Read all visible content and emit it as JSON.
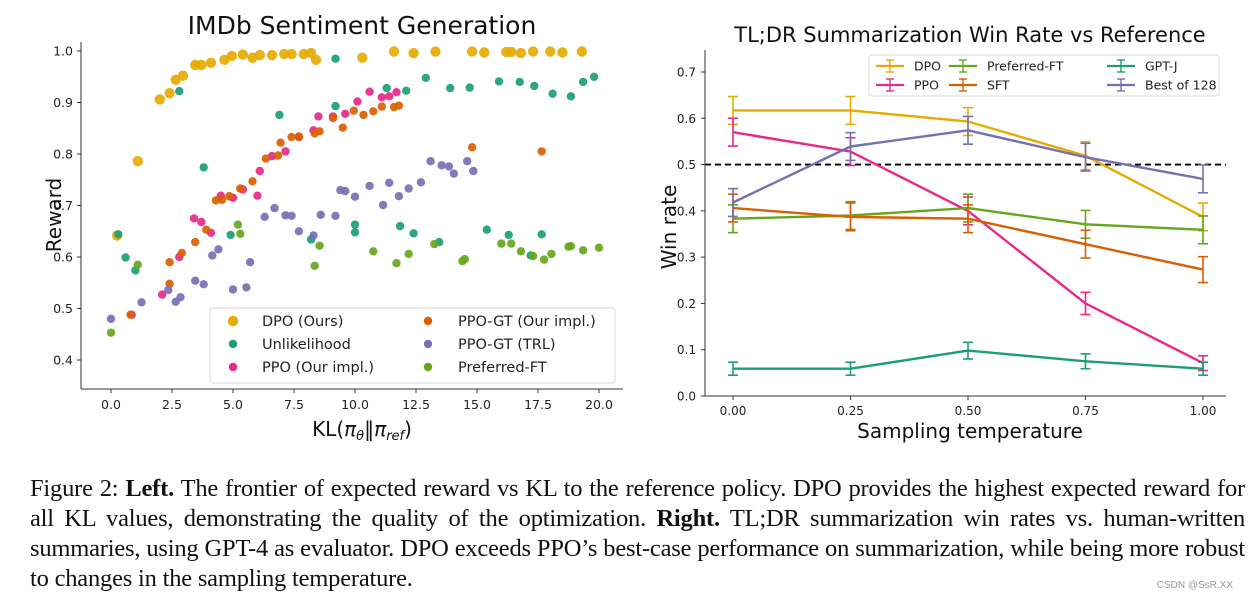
{
  "chart_data": [
    {
      "type": "scatter",
      "title": "IMDb Sentiment Generation",
      "xlabel": "KL(π_θ‖π_ref)",
      "ylabel": "Reward",
      "xlim": [
        -0.5,
        20.5
      ],
      "ylim": [
        0.345,
        1.02
      ],
      "xticks": [
        0.0,
        2.5,
        5.0,
        7.5,
        10.0,
        12.5,
        15.0,
        17.5,
        20.0
      ],
      "xtick_labels": [
        "0.0",
        "2.5",
        "5.0",
        "7.5",
        "10.0",
        "12.5",
        "15.0",
        "17.5",
        "20.0"
      ],
      "yticks": [
        0.4,
        0.5,
        0.6,
        0.7,
        0.8,
        0.9,
        1.0
      ],
      "ytick_labels": [
        "0.4",
        "0.5",
        "0.6",
        "0.7",
        "0.8",
        "0.9",
        "1.0"
      ],
      "grid": false,
      "legend_position": "bottom-right",
      "legend_columns": 2,
      "series": [
        {
          "name": "DPO (Ours)",
          "color": "#e6ab02",
          "size": "large",
          "points": [
            [
              0.25,
              0.642
            ],
            [
              1.1,
              0.786
            ],
            [
              2.0,
              0.906
            ],
            [
              2.4,
              0.918
            ],
            [
              2.65,
              0.944
            ],
            [
              2.95,
              0.952
            ],
            [
              3.45,
              0.973
            ],
            [
              3.7,
              0.973
            ],
            [
              4.1,
              0.977
            ],
            [
              4.65,
              0.983
            ],
            [
              4.95,
              0.99
            ],
            [
              5.4,
              0.993
            ],
            [
              5.8,
              0.987
            ],
            [
              6.1,
              0.992
            ],
            [
              6.6,
              0.992
            ],
            [
              7.1,
              0.994
            ],
            [
              7.4,
              0.994
            ],
            [
              7.9,
              0.994
            ],
            [
              8.2,
              0.996
            ],
            [
              8.4,
              0.983
            ],
            [
              10.3,
              0.987
            ],
            [
              11.6,
              0.999
            ],
            [
              12.4,
              0.996
            ],
            [
              13.3,
              0.999
            ],
            [
              14.8,
              0.999
            ],
            [
              15.3,
              0.997
            ],
            [
              16.2,
              0.998
            ],
            [
              16.4,
              0.998
            ],
            [
              16.8,
              0.996
            ],
            [
              17.3,
              0.999
            ],
            [
              18.0,
              0.999
            ],
            [
              18.5,
              0.997
            ],
            [
              19.3,
              0.999
            ]
          ]
        },
        {
          "name": "Unlikelihood",
          "color": "#1b9e77",
          "size": "small",
          "points": [
            [
              0.3,
              0.644
            ],
            [
              0.6,
              0.599
            ],
            [
              1.0,
              0.574
            ],
            [
              2.8,
              0.922
            ],
            [
              3.8,
              0.774
            ],
            [
              4.9,
              0.643
            ],
            [
              6.9,
              0.876
            ],
            [
              8.2,
              0.634
            ],
            [
              9.2,
              0.985
            ],
            [
              9.2,
              0.893
            ],
            [
              10.0,
              0.648
            ],
            [
              10.0,
              0.663
            ],
            [
              11.3,
              0.928
            ],
            [
              11.85,
              0.66
            ],
            [
              12.1,
              0.923
            ],
            [
              12.4,
              0.646
            ],
            [
              12.9,
              0.948
            ],
            [
              13.45,
              0.629
            ],
            [
              13.9,
              0.928
            ],
            [
              14.7,
              0.929
            ],
            [
              15.4,
              0.653
            ],
            [
              15.9,
              0.941
            ],
            [
              16.3,
              0.643
            ],
            [
              16.75,
              0.94
            ],
            [
              17.2,
              0.603
            ],
            [
              17.35,
              0.932
            ],
            [
              17.65,
              0.644
            ],
            [
              18.1,
              0.917
            ],
            [
              18.85,
              0.912
            ],
            [
              19.35,
              0.94
            ],
            [
              19.8,
              0.95
            ]
          ]
        },
        {
          "name": "PPO (Our impl.)",
          "color": "#e7298a",
          "size": "small",
          "points": [
            [
              0.85,
              0.488
            ],
            [
              2.1,
              0.527
            ],
            [
              2.8,
              0.6
            ],
            [
              3.4,
              0.675
            ],
            [
              3.7,
              0.668
            ],
            [
              4.1,
              0.647
            ],
            [
              4.5,
              0.719
            ],
            [
              5.0,
              0.715
            ],
            [
              5.4,
              0.731
            ],
            [
              6.0,
              0.719
            ],
            [
              6.1,
              0.767
            ],
            [
              6.6,
              0.796
            ],
            [
              7.15,
              0.805
            ],
            [
              7.7,
              0.833
            ],
            [
              8.3,
              0.846
            ],
            [
              8.5,
              0.873
            ],
            [
              9.1,
              0.873
            ],
            [
              9.6,
              0.878
            ],
            [
              10.1,
              0.902
            ],
            [
              10.6,
              0.921
            ],
            [
              11.1,
              0.91
            ],
            [
              11.4,
              0.912
            ],
            [
              11.7,
              0.92
            ]
          ]
        },
        {
          "name": "PPO-GT (Our impl.)",
          "color": "#d95f02",
          "size": "small",
          "points": [
            [
              0.8,
              0.488
            ],
            [
              2.4,
              0.548
            ],
            [
              2.4,
              0.59
            ],
            [
              2.9,
              0.608
            ],
            [
              3.45,
              0.629
            ],
            [
              3.9,
              0.653
            ],
            [
              4.3,
              0.71
            ],
            [
              4.55,
              0.711
            ],
            [
              4.85,
              0.718
            ],
            [
              5.3,
              0.733
            ],
            [
              5.8,
              0.747
            ],
            [
              6.35,
              0.791
            ],
            [
              6.85,
              0.797
            ],
            [
              6.95,
              0.822
            ],
            [
              7.4,
              0.833
            ],
            [
              7.7,
              0.834
            ],
            [
              8.35,
              0.84
            ],
            [
              8.55,
              0.844
            ],
            [
              9.1,
              0.87
            ],
            [
              9.5,
              0.851
            ],
            [
              9.95,
              0.884
            ],
            [
              10.35,
              0.876
            ],
            [
              10.75,
              0.883
            ],
            [
              11.1,
              0.892
            ],
            [
              11.6,
              0.891
            ],
            [
              11.8,
              0.894
            ],
            [
              14.8,
              0.813
            ],
            [
              17.65,
              0.805
            ]
          ]
        },
        {
          "name": "PPO-GT (TRL)",
          "color": "#7570b3",
          "size": "small",
          "points": [
            [
              0.0,
              0.48
            ],
            [
              1.25,
              0.512
            ],
            [
              2.35,
              0.536
            ],
            [
              2.65,
              0.513
            ],
            [
              2.85,
              0.522
            ],
            [
              3.45,
              0.554
            ],
            [
              3.8,
              0.547
            ],
            [
              4.15,
              0.603
            ],
            [
              4.4,
              0.615
            ],
            [
              5.0,
              0.537
            ],
            [
              5.55,
              0.541
            ],
            [
              5.7,
              0.59
            ],
            [
              6.3,
              0.678
            ],
            [
              6.7,
              0.695
            ],
            [
              7.15,
              0.681
            ],
            [
              7.4,
              0.68
            ],
            [
              7.7,
              0.65
            ],
            [
              8.3,
              0.642
            ],
            [
              8.6,
              0.682
            ],
            [
              9.2,
              0.68
            ],
            [
              9.4,
              0.73
            ],
            [
              9.6,
              0.728
            ],
            [
              10.0,
              0.717
            ],
            [
              10.6,
              0.738
            ],
            [
              11.15,
              0.701
            ],
            [
              11.4,
              0.744
            ],
            [
              11.8,
              0.718
            ],
            [
              12.2,
              0.733
            ],
            [
              12.7,
              0.745
            ],
            [
              13.1,
              0.786
            ],
            [
              13.55,
              0.778
            ],
            [
              13.85,
              0.776
            ],
            [
              14.05,
              0.762
            ],
            [
              14.6,
              0.786
            ],
            [
              14.85,
              0.767
            ]
          ]
        },
        {
          "name": "Preferred-FT",
          "color": "#66a61e",
          "size": "small",
          "points": [
            [
              0.0,
              0.453
            ],
            [
              1.1,
              0.585
            ],
            [
              5.2,
              0.663
            ],
            [
              5.3,
              0.645
            ],
            [
              8.35,
              0.583
            ],
            [
              8.55,
              0.622
            ],
            [
              10.75,
              0.611
            ],
            [
              11.7,
              0.588
            ],
            [
              12.2,
              0.606
            ],
            [
              13.25,
              0.625
            ],
            [
              14.4,
              0.592
            ],
            [
              14.5,
              0.596
            ],
            [
              16.0,
              0.626
            ],
            [
              16.4,
              0.626
            ],
            [
              16.8,
              0.611
            ],
            [
              17.3,
              0.602
            ],
            [
              17.75,
              0.595
            ],
            [
              18.05,
              0.606
            ],
            [
              18.75,
              0.62
            ],
            [
              18.85,
              0.621
            ],
            [
              19.35,
              0.613
            ],
            [
              20.0,
              0.618
            ]
          ]
        }
      ]
    },
    {
      "type": "line",
      "title": "TL;DR Summarization Win Rate vs Reference",
      "xlabel": "Sampling temperature",
      "ylabel": "Win rate",
      "x": [
        0.0,
        0.25,
        0.5,
        0.75,
        1.0
      ],
      "xlim": [
        -0.045,
        1.045
      ],
      "ylim": [
        0.0,
        0.75
      ],
      "xticks": [
        0.0,
        0.25,
        0.5,
        0.75,
        1.0
      ],
      "xtick_labels": [
        "0.00",
        "0.25",
        "0.50",
        "0.75",
        "1.00"
      ],
      "yticks": [
        0.0,
        0.1,
        0.2,
        0.3,
        0.4,
        0.5,
        0.6,
        0.7
      ],
      "ytick_labels": [
        "0.0",
        "0.1",
        "0.2",
        "0.3",
        "0.4",
        "0.5",
        "0.6",
        "0.7"
      ],
      "grid": false,
      "reference_line": {
        "y": 0.5,
        "style": "dashed",
        "color": "#000000"
      },
      "legend_position": "top-right",
      "legend_columns": 3,
      "series": [
        {
          "name": "DPO",
          "color": "#e6ab02",
          "values": [
            0.617,
            0.617,
            0.593,
            0.519,
            0.387
          ],
          "errors": [
            0.03,
            0.03,
            0.03,
            0.03,
            0.03
          ]
        },
        {
          "name": "PPO",
          "color": "#e7298a",
          "values": [
            0.57,
            0.528,
            0.4,
            0.2,
            0.071
          ],
          "errors": [
            0.03,
            0.03,
            0.03,
            0.024,
            0.016
          ]
        },
        {
          "name": "Preferred-FT",
          "color": "#66a61e",
          "values": [
            0.383,
            0.39,
            0.406,
            0.371,
            0.359
          ],
          "errors": [
            0.03,
            0.03,
            0.03,
            0.03,
            0.03
          ]
        },
        {
          "name": "SFT",
          "color": "#d95f02",
          "values": [
            0.406,
            0.387,
            0.383,
            0.328,
            0.273
          ],
          "errors": [
            0.03,
            0.03,
            0.03,
            0.03,
            0.028
          ]
        },
        {
          "name": "GPT-J",
          "color": "#1b9e77",
          "values": [
            0.059,
            0.059,
            0.098,
            0.075,
            0.059
          ],
          "errors": [
            0.014,
            0.014,
            0.018,
            0.016,
            0.014
          ]
        },
        {
          "name": "Best of 128",
          "color": "#7570b3",
          "values": [
            0.418,
            0.539,
            0.574,
            0.516,
            0.469
          ],
          "errors": [
            0.03,
            0.03,
            0.03,
            0.03,
            0.03
          ]
        }
      ]
    }
  ],
  "caption": {
    "label": "Figure 2:",
    "left_heading": "Left.",
    "left_text": "The frontier of expected reward vs KL to the reference policy. DPO provides the highest expected reward for all KL values, demonstrating the quality of the optimization.",
    "right_heading": "Right.",
    "right_text": "TL;DR summarization win rates vs. human-written summaries, using GPT-4 as evaluator. DPO exceeds PPO’s best-case performance on summarization, while being more robust to changes in the sampling temperature."
  },
  "watermark": "CSDN @SsR.XX"
}
